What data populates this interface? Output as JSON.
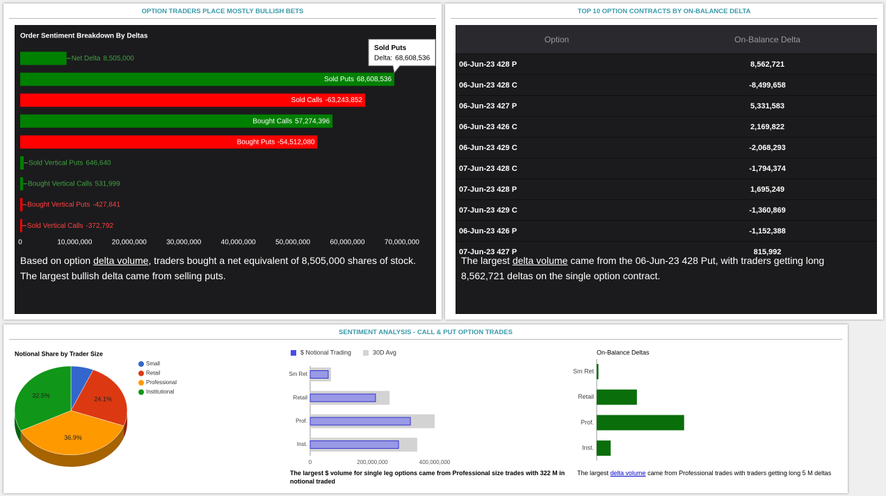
{
  "panel_titles": [
    "OPTION TRADERS PLACE MOSTLY BULLISH BETS",
    "TOP 10 OPTION CONTRACTS BY ON-BALANCE DELTA",
    "SENTIMENT ANALYSIS - CALL & PUT OPTION TRADES"
  ],
  "chart_data": [
    {
      "type": "bar",
      "orientation": "horizontal",
      "title": "Order Sentiment Breakdown By Deltas",
      "categories": [
        "Net Delta",
        "Sold Puts",
        "Sold Calls",
        "Bought Calls",
        "Bought Puts",
        "Sold Vertical Puts",
        "Bought Vertical Calls",
        "Bought Vertical Puts",
        "Sold Vertical Calls"
      ],
      "values": [
        8505000,
        68608536,
        -63243852,
        57274396,
        -54512080,
        646640,
        531999,
        -427841,
        -372792
      ],
      "value_labels": [
        "8,505,000",
        "68,608,536",
        "-63,243,852",
        "57,274,396",
        "-54,512,080",
        "646,640",
        "531,999",
        "-427,841",
        "-372,792"
      ],
      "colors": [
        "#008000",
        "#008000",
        "#ff0000",
        "#008000",
        "#ff0000",
        "#008000",
        "#008000",
        "#ff0000",
        "#ff0000"
      ],
      "xlim": [
        0,
        76000000
      ],
      "xticks": [
        0,
        {
          "value": 10000000,
          "label": "10,000,000"
        },
        {
          "value": 20000000,
          "label": "20,000,000"
        },
        {
          "value": 30000000,
          "label": "30,000,000"
        },
        {
          "value": 40000000,
          "label": "40,000,000"
        },
        {
          "value": 50000000,
          "label": "50,000,000"
        },
        {
          "value": 60000000,
          "label": "60,000,000"
        },
        {
          "value": 70000000,
          "label": "70,000,000"
        }
      ],
      "tooltip": {
        "category": "Sold Puts",
        "label": "Delta:",
        "value": "68,608,536"
      },
      "caption": {
        "before": "Based on option ",
        "link": "delta volume",
        "after": ", traders bought a net equivalent of 8,505,000 shares of stock.",
        "line2": "The largest bullish delta came from selling puts."
      }
    },
    {
      "type": "pie",
      "title": "Notional Share by Trader Size",
      "categories": [
        "Small",
        "Retail",
        "Professional",
        "Institutional"
      ],
      "values": [
        6.5,
        24.1,
        36.9,
        32.5
      ],
      "value_labels": [
        null,
        "24.1%",
        "36.9%",
        "32.5%"
      ],
      "colors": [
        "#3366cc",
        "#dc3912",
        "#ff9900",
        "#109618"
      ]
    },
    {
      "type": "bar",
      "orientation": "horizontal",
      "categories": [
        "Sm Ret",
        "Retail",
        "Prof.",
        "Inst."
      ],
      "series": [
        {
          "name": "$ Notional Trading",
          "color": "#9999e6",
          "values": [
            58000000,
            210000000,
            322000000,
            284000000
          ]
        },
        {
          "name": "30D Avg",
          "color": "#d3d3d3",
          "values": [
            67000000,
            255000000,
            400000000,
            344000000
          ]
        }
      ],
      "xlim": [
        0,
        400000000
      ],
      "xticks": [
        0,
        {
          "value": 200000000,
          "label": "200,000,000"
        },
        {
          "value": 400000000,
          "label": "400,000,000"
        }
      ],
      "caption": "The largest $ volume for single leg options came from Professional size trades with 322 M in notional traded"
    },
    {
      "type": "bar",
      "orientation": "horizontal",
      "title": "On-Balance Deltas",
      "categories": [
        "Sm Ret",
        "Retail",
        "Prof.",
        "Inst."
      ],
      "values": [
        100000,
        2300000,
        5000000,
        800000
      ],
      "color": "#0a6e0a",
      "xlim": [
        0,
        14000000
      ],
      "caption": {
        "before": "The largest ",
        "link": "delta volume",
        "after": " came from Professional trades with traders getting long 5 M deltas"
      }
    }
  ],
  "table": {
    "header": [
      "Option",
      "On-Balance Delta"
    ],
    "rows": [
      [
        "06-Jun-23 428 P",
        "8,562,721"
      ],
      [
        "06-Jun-23 428 C",
        "-8,499,658"
      ],
      [
        "06-Jun-23 427 P",
        "5,331,583"
      ],
      [
        "06-Jun-23 426 C",
        "2,169,822"
      ],
      [
        "06-Jun-23 429 C",
        "-2,068,293"
      ],
      [
        "07-Jun-23 428 C",
        "-1,794,374"
      ],
      [
        "07-Jun-23 428 P",
        "1,695,249"
      ],
      [
        "07-Jun-23 429 C",
        "-1,360,869"
      ],
      [
        "06-Jun-23 426 P",
        "-1,152,388"
      ],
      [
        "07-Jun-23 427 P",
        "815,992"
      ]
    ],
    "caption": {
      "before": "The largest ",
      "link": "delta volume",
      "after": " came from the 06-Jun-23 428 Put, with traders getting long 8,562,721 deltas on the single option contract."
    }
  }
}
